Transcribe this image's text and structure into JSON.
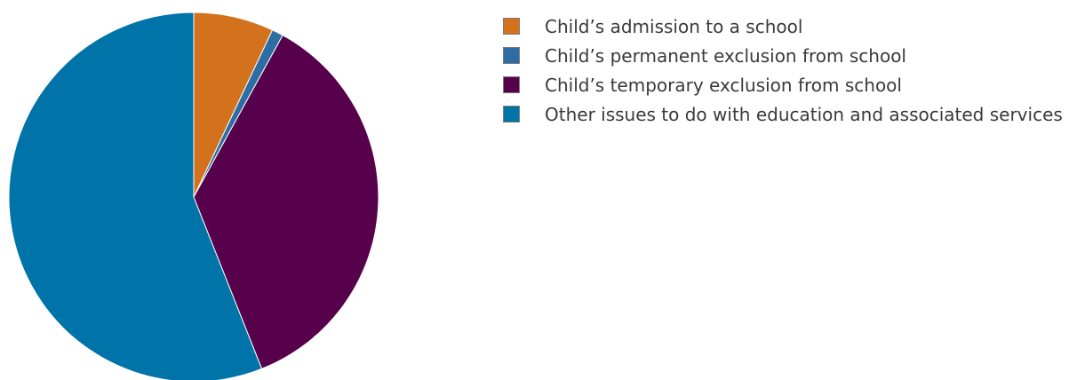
{
  "chart_data": {
    "type": "pie",
    "title": "",
    "start_angle_deg": 0,
    "direction": "clockwise",
    "legend_position": "right",
    "slices": [
      {
        "label": "Child’s admission to a school",
        "value": 7,
        "color": "#d3711c"
      },
      {
        "label": "Child’s permanent exclusion from school",
        "value": 1,
        "color": "#2c6ea3"
      },
      {
        "label": "Child’s temporary exclusion from school",
        "value": 36,
        "color": "#57004b"
      },
      {
        "label": "Other issues to do with education and associated services",
        "value": 56,
        "color": "#0074a8"
      }
    ]
  }
}
